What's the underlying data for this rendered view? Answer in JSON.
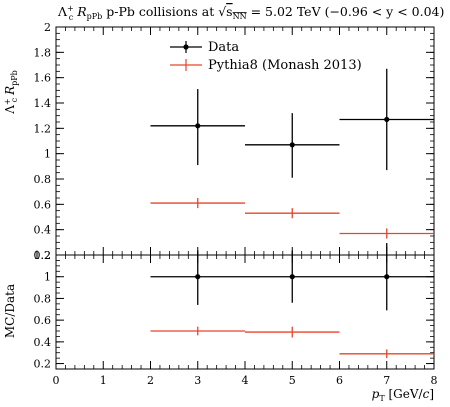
{
  "title": {
    "lead": "Λ",
    "lead_sup": "+",
    "lead_sub": "c",
    "r": "R",
    "r_sub": "pPb",
    "mid": " p-Pb collisions at ",
    "sqrt": "√",
    "snn": "s",
    "snn_sub": "NN",
    "energy": " = 5.02 TeV (−0.96 < y < 0.04)"
  },
  "colors": {
    "data": "#000000",
    "mc": "#e8442a"
  },
  "chart_data": [
    {
      "type": "scatter",
      "panel": "top",
      "ylabel": "Λc+ RpPb",
      "xlim": [
        0,
        8
      ],
      "ylim": [
        0.2,
        2.0
      ],
      "yticks": [
        "0.2",
        "0.4",
        "0.6",
        "0.8",
        "1",
        "1.2",
        "1.4",
        "1.6",
        "1.8",
        "2"
      ],
      "legend": {
        "position": "top-left",
        "entries": [
          "Data",
          "Pythia8 (Monash 2013)"
        ]
      },
      "series": [
        {
          "name": "Data",
          "style": "points-with-errors",
          "x": [
            3,
            5,
            7
          ],
          "xerr": [
            [
              2,
              4
            ],
            [
              4,
              6
            ],
            [
              6,
              8
            ]
          ],
          "y": [
            1.22,
            1.07,
            1.27
          ],
          "yerr": [
            [
              0.91,
              1.51
            ],
            [
              0.81,
              1.32
            ],
            [
              0.87,
              1.67
            ]
          ]
        },
        {
          "name": "Pythia8 (Monash 2013)",
          "style": "horizontal-bars",
          "x": [
            3,
            5,
            7
          ],
          "xerr": [
            [
              2,
              4
            ],
            [
              4,
              6
            ],
            [
              6,
              8
            ]
          ],
          "y": [
            0.61,
            0.53,
            0.37
          ],
          "yerr": [
            [
              0.57,
              0.65
            ],
            [
              0.49,
              0.57
            ],
            [
              0.33,
              0.41
            ]
          ]
        }
      ]
    },
    {
      "type": "scatter",
      "panel": "bottom",
      "ylabel": "MC/Data",
      "xlabel": "pT [GeV/c]",
      "xlim": [
        0,
        8
      ],
      "ylim": [
        0.15,
        1.2
      ],
      "xticks": [
        "0",
        "1",
        "2",
        "3",
        "4",
        "5",
        "6",
        "7",
        "8"
      ],
      "yticks": [
        "0.2",
        "0.4",
        "0.6",
        "0.8",
        "1",
        "1.2"
      ],
      "series": [
        {
          "style": "points-with-errors",
          "x": [
            3,
            5,
            7
          ],
          "xerr": [
            [
              2,
              4
            ],
            [
              4,
              6
            ],
            [
              6,
              8
            ]
          ],
          "y": [
            1.0,
            1.0,
            1.0
          ],
          "yerr": [
            [
              0.74,
              1.24
            ],
            [
              0.76,
              1.24
            ],
            [
              0.69,
              1.31
            ]
          ]
        },
        {
          "style": "horizontal-bars",
          "x": [
            3,
            5,
            7
          ],
          "xerr": [
            [
              2,
              4
            ],
            [
              4,
              6
            ],
            [
              6,
              8
            ]
          ],
          "y": [
            0.5,
            0.49,
            0.29
          ],
          "yerr": [
            [
              0.46,
              0.54
            ],
            [
              0.44,
              0.54
            ],
            [
              0.25,
              0.33
            ]
          ]
        }
      ]
    }
  ]
}
